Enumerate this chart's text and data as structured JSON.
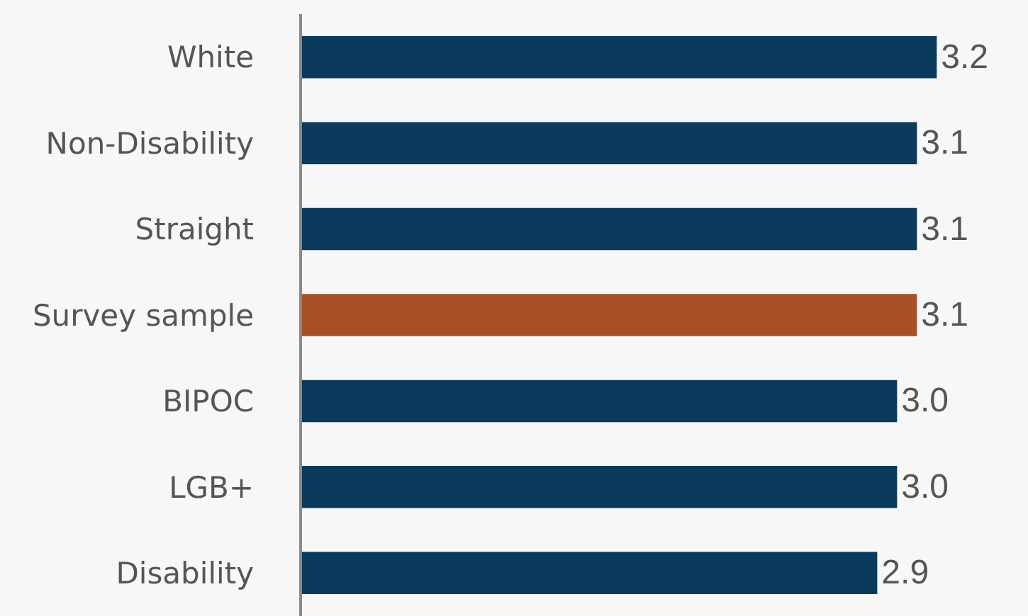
{
  "chart_data": {
    "type": "bar",
    "orientation": "horizontal",
    "categories": [
      "White",
      "Non-Disability",
      "Straight",
      "Survey sample",
      "BIPOC",
      "LGB+",
      "Disability"
    ],
    "values": [
      3.2,
      3.1,
      3.1,
      3.1,
      3.0,
      3.0,
      2.9
    ],
    "value_labels": [
      "3.2",
      "3.1",
      "3.1",
      "3.1",
      "3.0",
      "3.0",
      "2.9"
    ],
    "colors": [
      "#0a3a5c",
      "#0a3a5c",
      "#0a3a5c",
      "#a94f28",
      "#0a3a5c",
      "#0a3a5c",
      "#0a3a5c"
    ],
    "xlim": [
      0,
      3.66
    ],
    "tick_labels": "y"
  }
}
